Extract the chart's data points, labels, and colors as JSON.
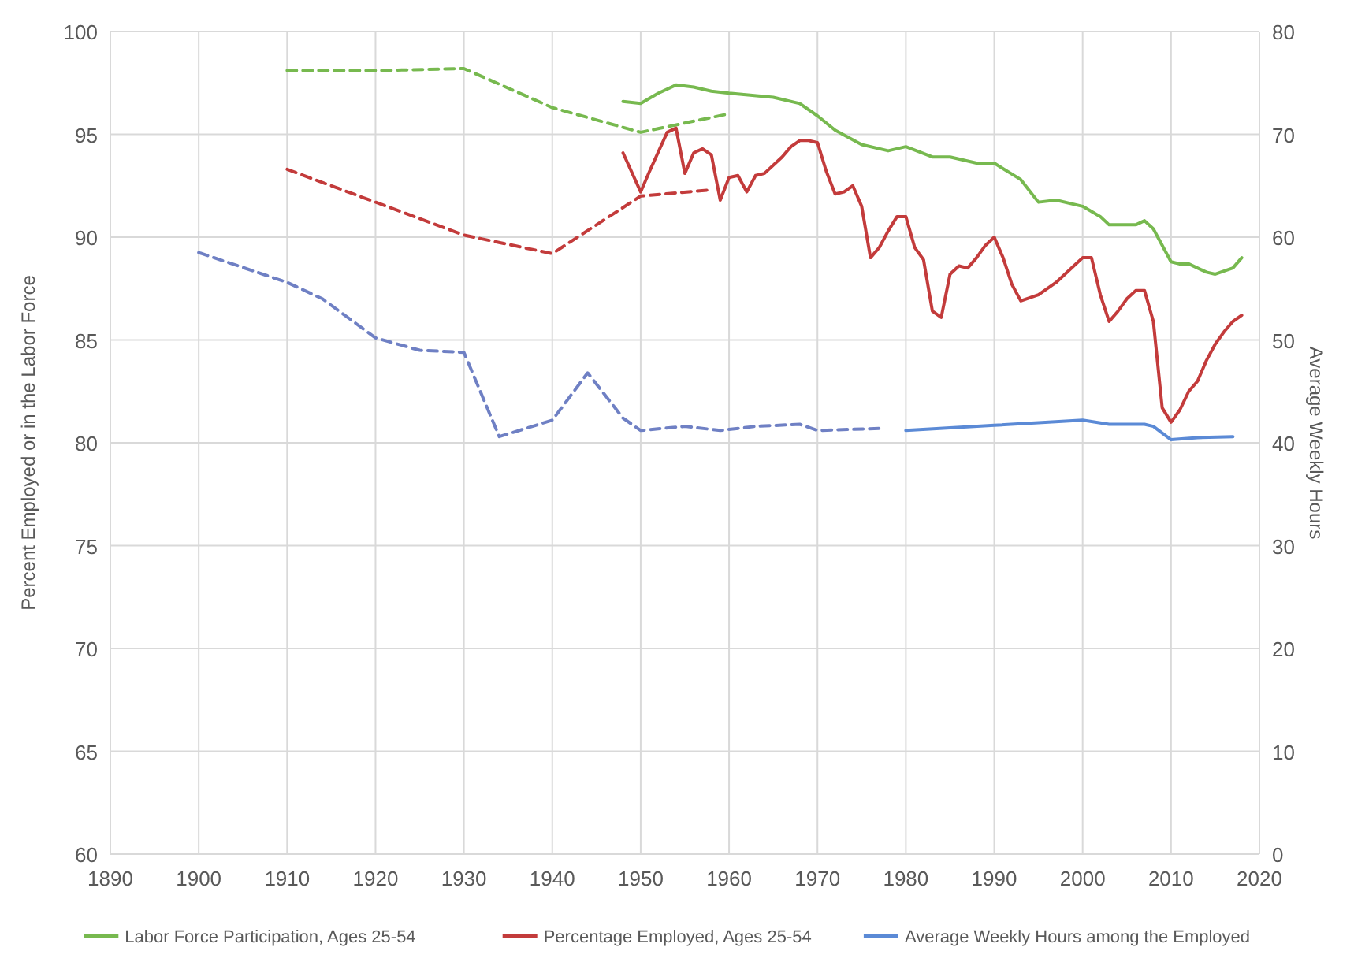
{
  "chart_data": {
    "type": "line",
    "ylabel": "Percent Employed or in the Labor Force",
    "y2label": "Average Weekly Hours",
    "xlim": [
      1890,
      2020
    ],
    "xticks": [
      1890,
      1900,
      1910,
      1920,
      1930,
      1940,
      1950,
      1960,
      1970,
      1980,
      1990,
      2000,
      2010,
      2020
    ],
    "ylim": [
      60,
      100
    ],
    "yticks": [
      60,
      65,
      70,
      75,
      80,
      85,
      90,
      95,
      100
    ],
    "y2lim": [
      0,
      80
    ],
    "y2ticks": [
      0,
      10,
      20,
      30,
      40,
      50,
      60,
      70,
      80
    ],
    "grid": true,
    "legend": "bottom",
    "series": [
      {
        "name": "Labor Force Participation, Ages 25-54",
        "color": "#77b94f",
        "line_style": "solid",
        "x": [
          1948,
          1950,
          1952,
          1954,
          1956,
          1958,
          1960,
          1965,
          1968,
          1970,
          1972,
          1975,
          1978,
          1980,
          1983,
          1985,
          1988,
          1990,
          1993,
          1995,
          1997,
          2000,
          2002,
          2003,
          2006,
          2007,
          2008,
          2010,
          2011,
          2012,
          2014,
          2015,
          2017,
          2018
        ],
        "values": [
          96.6,
          96.5,
          97.0,
          97.4,
          97.3,
          97.1,
          97.0,
          96.8,
          96.5,
          95.9,
          95.2,
          94.5,
          94.2,
          94.4,
          93.9,
          93.9,
          93.6,
          93.6,
          92.8,
          91.7,
          91.8,
          91.5,
          91.0,
          90.6,
          90.6,
          90.8,
          90.4,
          88.8,
          88.7,
          88.7,
          88.3,
          88.2,
          88.5,
          89.0
        ]
      },
      {
        "color": "#77b94f",
        "line_style": "dashed",
        "x": [
          1910,
          1920,
          1930,
          1940,
          1950,
          1960
        ],
        "values": [
          98.1,
          98.1,
          98.2,
          96.3,
          95.1,
          96.0
        ]
      },
      {
        "name": "Percentage Employed, Ages 25-54",
        "color": "#c33b3b",
        "line_style": "solid",
        "x": [
          1948,
          1950,
          1951,
          1953,
          1954,
          1955,
          1956,
          1957,
          1958,
          1959,
          1960,
          1961,
          1962,
          1963,
          1964,
          1966,
          1967,
          1968,
          1969,
          1970,
          1971,
          1972,
          1973,
          1974,
          1975,
          1976,
          1977,
          1978,
          1979,
          1980,
          1981,
          1982,
          1983,
          1984,
          1985,
          1986,
          1987,
          1988,
          1989,
          1990,
          1991,
          1992,
          1993,
          1995,
          1997,
          1999,
          2000,
          2001,
          2002,
          2003,
          2004,
          2005,
          2006,
          2007,
          2008,
          2009,
          2010,
          2011,
          2012,
          2013,
          2014,
          2015,
          2016,
          2017,
          2018
        ],
        "values": [
          94.1,
          92.2,
          93.2,
          95.1,
          95.3,
          93.1,
          94.1,
          94.3,
          94.0,
          91.8,
          92.9,
          93.0,
          92.2,
          93.0,
          93.1,
          93.9,
          94.4,
          94.7,
          94.7,
          94.6,
          93.2,
          92.1,
          92.2,
          92.5,
          91.5,
          89.0,
          89.5,
          90.3,
          91.0,
          91.0,
          89.5,
          88.9,
          86.4,
          86.1,
          88.2,
          88.6,
          88.5,
          89.0,
          89.6,
          90.0,
          89.0,
          87.7,
          86.9,
          87.2,
          87.8,
          88.6,
          89.0,
          89.0,
          87.2,
          85.9,
          86.4,
          87.0,
          87.4,
          87.4,
          85.9,
          81.7,
          81.0,
          81.6,
          82.5,
          83.0,
          84.0,
          84.8,
          85.4,
          85.9,
          86.2
        ]
      },
      {
        "color": "#c33b3b",
        "line_style": "dashed",
        "x": [
          1910,
          1930,
          1940,
          1950,
          1958
        ],
        "values": [
          93.3,
          90.1,
          89.2,
          92.0,
          92.3
        ]
      },
      {
        "name": "Average Weekly Hours among the Employed",
        "color": "#5b8ad6",
        "line_style": "solid",
        "axis": "y2",
        "x": [
          1980,
          1990,
          2000,
          2003,
          2007,
          2008,
          2010,
          2013,
          2017
        ],
        "values": [
          41.2,
          41.7,
          42.2,
          41.8,
          41.8,
          41.6,
          40.3,
          40.5,
          40.6
        ]
      },
      {
        "color": "#6f80c4",
        "line_style": "dashed",
        "axis": "y2",
        "x": [
          1900,
          1910,
          1914,
          1920,
          1925,
          1930,
          1934,
          1940,
          1944,
          1948,
          1950,
          1955,
          1959,
          1963,
          1968,
          1970,
          1977
        ],
        "values": [
          58.5,
          55.6,
          54.0,
          50.2,
          49.0,
          48.8,
          40.6,
          42.2,
          46.8,
          42.4,
          41.2,
          41.6,
          41.2,
          41.6,
          41.8,
          41.2,
          41.4
        ]
      }
    ]
  }
}
